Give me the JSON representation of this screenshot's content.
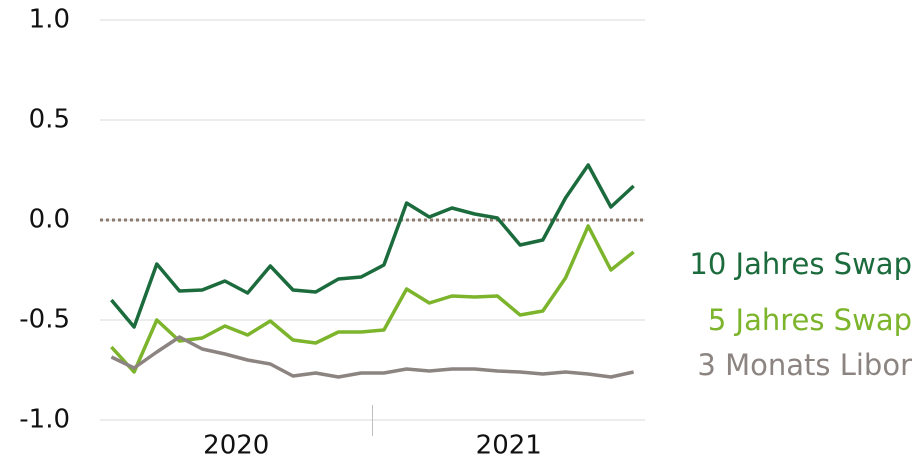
{
  "chart_data": {
    "type": "line",
    "categories": [
      null,
      null,
      null,
      null,
      null,
      null,
      null,
      null,
      null,
      null,
      null,
      null,
      null,
      null,
      null,
      null,
      null,
      null,
      null,
      null,
      null,
      null,
      null,
      null
    ],
    "x_groups": [
      "2020",
      "2021"
    ],
    "series": [
      {
        "name": "10 Jahres Swap",
        "color": "#1b6b3d",
        "values": [
          -0.4,
          -0.535,
          -0.22,
          -0.355,
          -0.35,
          -0.305,
          -0.365,
          -0.23,
          -0.35,
          -0.36,
          -0.295,
          -0.285,
          -0.225,
          0.085,
          0.015,
          0.06,
          0.03,
          0.01,
          -0.125,
          -0.1,
          0.11,
          0.275,
          0.065,
          0.17
        ]
      },
      {
        "name": "5 Jahres Swap",
        "color": "#7cb42c",
        "values": [
          -0.635,
          -0.76,
          -0.5,
          -0.605,
          -0.59,
          -0.53,
          -0.575,
          -0.505,
          -0.6,
          -0.615,
          -0.56,
          -0.56,
          -0.55,
          -0.345,
          -0.415,
          -0.38,
          -0.385,
          -0.38,
          -0.475,
          -0.455,
          -0.29,
          -0.03,
          -0.25,
          -0.16
        ]
      },
      {
        "name": "3 Monats Libor",
        "color": "#8c8480",
        "values": [
          -0.685,
          -0.74,
          -0.66,
          -0.585,
          -0.645,
          -0.67,
          -0.7,
          -0.72,
          -0.78,
          -0.765,
          -0.785,
          -0.765,
          -0.765,
          -0.745,
          -0.755,
          -0.745,
          -0.745,
          -0.755,
          -0.76,
          -0.77,
          -0.76,
          -0.77,
          -0.785,
          -0.76
        ]
      }
    ],
    "ylim": [
      -1.0,
      1.0
    ],
    "yticks": [
      {
        "value": -1.0,
        "label": "-1.0"
      },
      {
        "value": -0.5,
        "label": "-0.5"
      },
      {
        "value": 0.0,
        "label": "0.0"
      },
      {
        "value": 0.5,
        "label": "0.5"
      },
      {
        "value": 1.0,
        "label": "1.0"
      }
    ],
    "grid": true,
    "reference_line": {
      "value": 0,
      "color": "#8c7b6e",
      "style": "dotted"
    }
  }
}
